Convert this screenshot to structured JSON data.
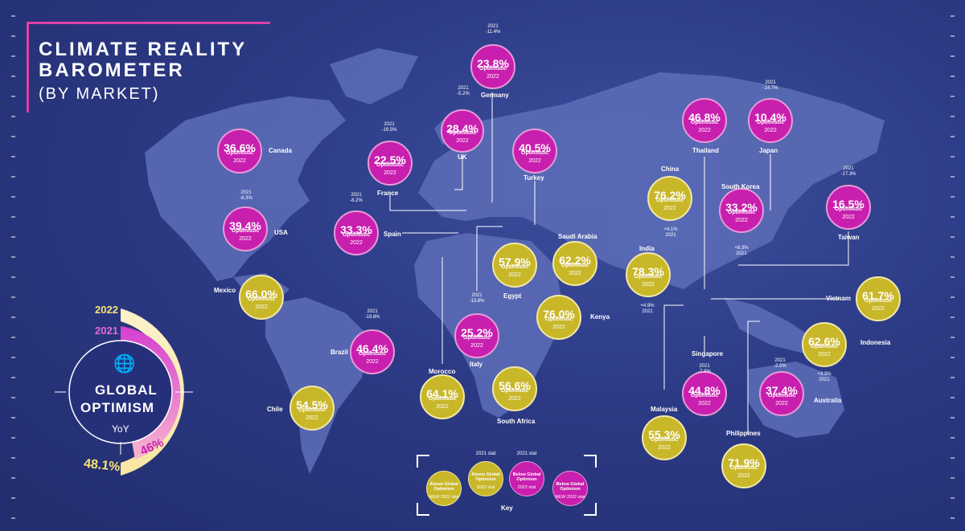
{
  "title": {
    "line1": "CLIMATE REALITY",
    "line2": "BAROMETER",
    "line3": "(BY MARKET)"
  },
  "colors": {
    "above": "#c9b72a",
    "below": "#c81fae",
    "background": "#2c3a85"
  },
  "global": {
    "label_2022": "2022",
    "label_2021": "2021",
    "title_1": "GLOBAL",
    "title_2": "OPTIMISM",
    "yoy": "YoY",
    "value_2022": "48.1%",
    "value_2021": "46%",
    "pct_2022": 48.1,
    "pct_2021": 46
  },
  "chart_data": {
    "type": "map",
    "unit": "% Optimistic (2022)",
    "markets": [
      {
        "name": "Canada",
        "value": 36.6,
        "label": "36.6%",
        "opt": "Optimistic",
        "year": "2022",
        "cat": "below",
        "delta": ""
      },
      {
        "name": "USA",
        "value": 39.4,
        "label": "39.4%",
        "opt": "Optimistic",
        "year": "2022",
        "cat": "below",
        "delta": "2021\n-8.3%"
      },
      {
        "name": "Mexico",
        "value": 66.0,
        "label": "66.0%",
        "opt": "Optimistic",
        "year": "2022",
        "cat": "above",
        "delta": ""
      },
      {
        "name": "Brazil",
        "value": 46.4,
        "label": "46.4%",
        "opt": "Optimistic",
        "year": "2022",
        "cat": "below",
        "delta": "2021\n-19.8%"
      },
      {
        "name": "Chile",
        "value": 54.5,
        "label": "54.5%",
        "opt": "Optimistic",
        "year": "2022",
        "cat": "above",
        "delta": ""
      },
      {
        "name": "France",
        "value": 22.5,
        "label": "22.5%",
        "opt": "Optimistic",
        "year": "2022",
        "cat": "below",
        "delta": "2021\n-19.5%"
      },
      {
        "name": "Spain",
        "value": 33.3,
        "label": "33.3%",
        "opt": "Optimistic",
        "year": "2022",
        "cat": "below",
        "delta": "2021\n-8.2%"
      },
      {
        "name": "UK",
        "value": 28.4,
        "label": "28.4%",
        "opt": "Optimistic",
        "year": "2022",
        "cat": "below",
        "delta": "2021\n-5.2%"
      },
      {
        "name": "Germany",
        "value": 23.8,
        "label": "23.8%",
        "opt": "Optimistic",
        "year": "2022",
        "cat": "below",
        "delta": "2021\n-11.4%"
      },
      {
        "name": "Turkey",
        "value": 40.5,
        "label": "40.5%",
        "opt": "Optimistic",
        "year": "2022",
        "cat": "below",
        "delta": ""
      },
      {
        "name": "Italy",
        "value": 25.2,
        "label": "25.2%",
        "opt": "Optimistic",
        "year": "2022",
        "cat": "below",
        "delta": "2021\n-13.8%"
      },
      {
        "name": "Morocco",
        "value": 64.1,
        "label": "64.1%",
        "opt": "Optimistic",
        "year": "2022",
        "cat": "above",
        "delta": ""
      },
      {
        "name": "Egypt",
        "value": 57.9,
        "label": "57.9%",
        "opt": "Optimistic",
        "year": "2022",
        "cat": "above",
        "delta": ""
      },
      {
        "name": "Saudi Arabia",
        "value": 62.2,
        "label": "62.2%",
        "opt": "Optimistic",
        "year": "2022",
        "cat": "above",
        "delta": ""
      },
      {
        "name": "Kenya",
        "value": 76.0,
        "label": "76.0%",
        "opt": "Optimistic",
        "year": "2022",
        "cat": "above",
        "delta": ""
      },
      {
        "name": "South Africa",
        "value": 56.6,
        "label": "56.6%",
        "opt": "Optimistic",
        "year": "2022",
        "cat": "above",
        "delta": ""
      },
      {
        "name": "India",
        "value": 78.3,
        "label": "78.3%",
        "opt": "Optimistic",
        "year": "2022",
        "cat": "above",
        "delta": "+4.9%\n2021"
      },
      {
        "name": "China",
        "value": 76.2,
        "label": "76.2%",
        "opt": "Optimistic",
        "year": "2022",
        "cat": "above",
        "delta": "+4.1%\n2021"
      },
      {
        "name": "Thailand",
        "value": 46.8,
        "label": "46.8%",
        "opt": "Optimistic",
        "year": "2022",
        "cat": "below",
        "delta": ""
      },
      {
        "name": "Japan",
        "value": 10.4,
        "label": "10.4%",
        "opt": "Optimistic",
        "year": "2022",
        "cat": "below",
        "delta": "2021\n-14.7%"
      },
      {
        "name": "South Korea",
        "value": 33.2,
        "label": "33.2%",
        "opt": "Optimistic",
        "year": "2022",
        "cat": "below",
        "delta": "+8.3%\n2021"
      },
      {
        "name": "Taiwan",
        "value": 16.5,
        "label": "16.5%",
        "opt": "Optimistic",
        "year": "2022",
        "cat": "below",
        "delta": "2021\n-17.3%"
      },
      {
        "name": "Vietnam",
        "value": 61.7,
        "label": "61.7%",
        "opt": "Optimistic",
        "year": "2022",
        "cat": "above",
        "delta": ""
      },
      {
        "name": "Indonesia",
        "value": 62.6,
        "label": "62.6%",
        "opt": "Optimistic",
        "year": "2022",
        "cat": "above",
        "delta": "+3.3%\n2021"
      },
      {
        "name": "Singapore",
        "value": 44.8,
        "label": "44.8%",
        "opt": "Optimistic",
        "year": "2022",
        "cat": "below",
        "delta": "2021\n-7.8%"
      },
      {
        "name": "Australia",
        "value": 37.4,
        "label": "37.4%",
        "opt": "Optimistic",
        "year": "2022",
        "cat": "below",
        "delta": "2021\n-2.5%"
      },
      {
        "name": "Malaysia",
        "value": 55.3,
        "label": "55.3%",
        "opt": "Optimistic",
        "year": "2022",
        "cat": "above",
        "delta": ""
      },
      {
        "name": "Philippines",
        "value": 71.9,
        "label": "71.9%",
        "opt": "Optimistic",
        "year": "2022",
        "cat": "above",
        "delta": ""
      }
    ]
  },
  "key": {
    "title": "Key",
    "items": [
      {
        "label": "Above Global Optimism",
        "sub": "NEW 2022 stat",
        "cat": "above",
        "top": ""
      },
      {
        "label": "Above Global Optimism",
        "sub": "2022 stat",
        "cat": "above",
        "top": "2021 stat"
      },
      {
        "label": "Below Global Optimism",
        "sub": "2022 stat",
        "cat": "below",
        "top": "2021 stat"
      },
      {
        "label": "Below Global Optimism",
        "sub": "NEW 2022 stat",
        "cat": "below",
        "top": ""
      }
    ]
  }
}
